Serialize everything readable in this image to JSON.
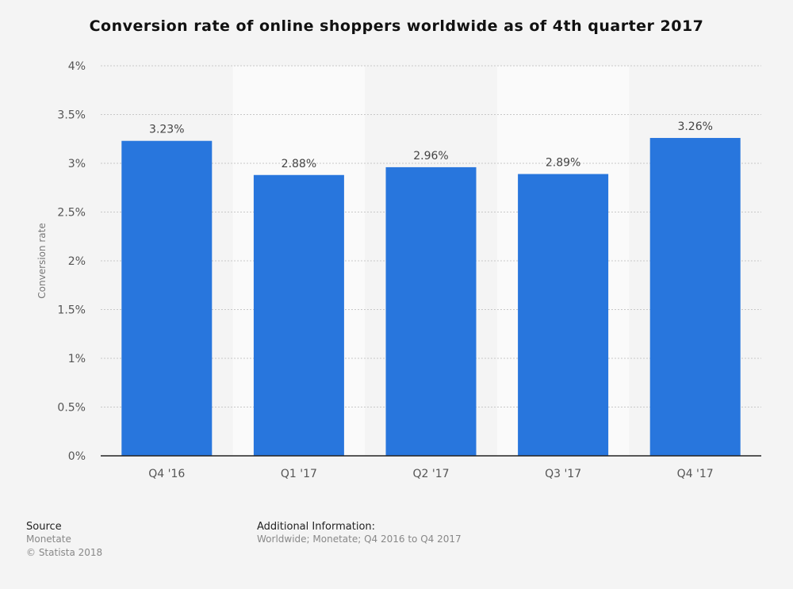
{
  "chart_data": {
    "type": "bar",
    "title": "Conversion rate of online shoppers worldwide as of 4th quarter 2017",
    "categories": [
      "Q4 '16",
      "Q1 '17",
      "Q2 '17",
      "Q3 '17",
      "Q4 '17"
    ],
    "values": [
      3.23,
      2.88,
      2.96,
      2.89,
      3.26
    ],
    "data_labels": [
      "3.23%",
      "2.88%",
      "2.96%",
      "2.89%",
      "3.26%"
    ],
    "xlabel": "",
    "ylabel": "Conversion rate",
    "ylim": [
      0,
      4
    ],
    "yticks": [
      0,
      0.5,
      1,
      1.5,
      2,
      2.5,
      3,
      3.5,
      4
    ],
    "ytick_labels": [
      "0%",
      "0.5%",
      "1%",
      "1.5%",
      "2%",
      "2.5%",
      "3%",
      "3.5%",
      "4%"
    ],
    "grid": true,
    "bar_color": "#2876dd"
  },
  "footer": {
    "source_label": "Source",
    "source": "Monetate",
    "copyright": "© Statista 2018",
    "additional_label": "Additional Information:",
    "additional": "Worldwide; Monetate; Q4 2016 to Q4 2017"
  }
}
